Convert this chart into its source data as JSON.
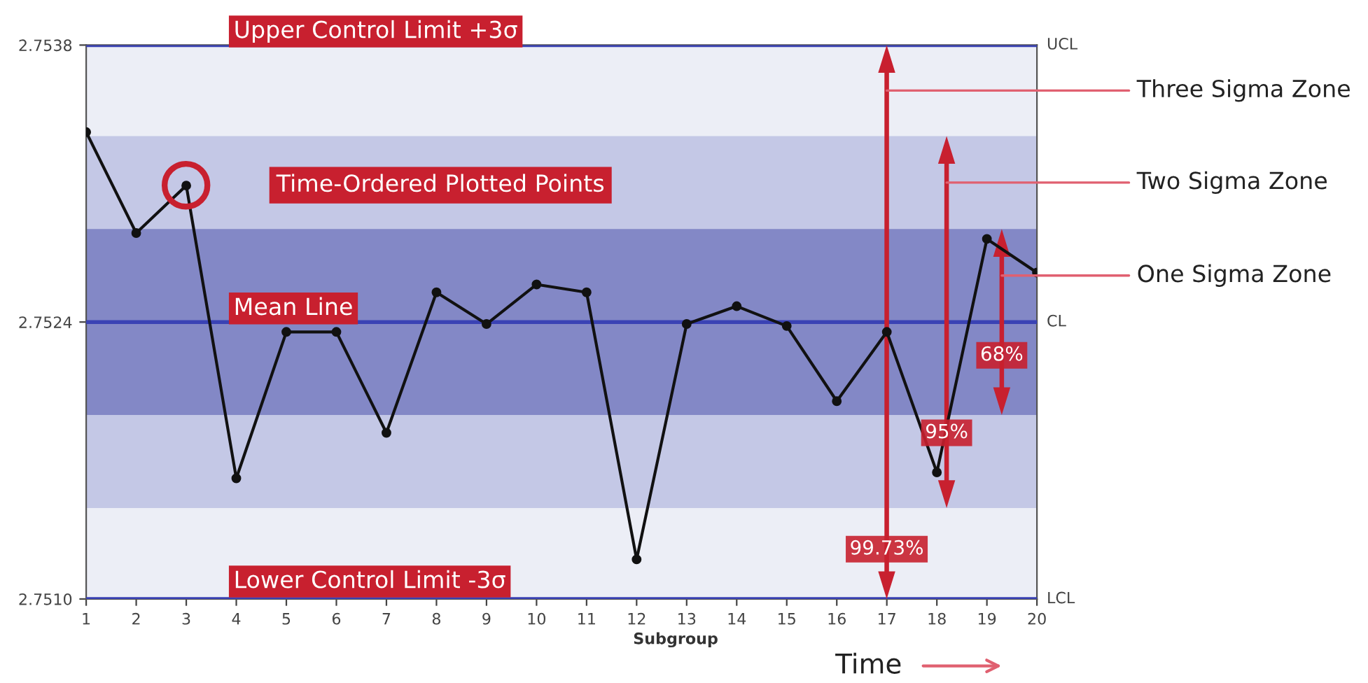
{
  "chart_data": {
    "type": "line",
    "x": [
      1,
      2,
      3,
      4,
      5,
      6,
      7,
      8,
      9,
      10,
      11,
      12,
      13,
      14,
      15,
      16,
      17,
      18,
      19,
      20
    ],
    "series": [
      {
        "color": "#111111",
        "values": [
          2.75336,
          2.75285,
          2.75309,
          2.75161,
          2.75235,
          2.75235,
          2.75184,
          2.75255,
          2.75239,
          2.75259,
          2.75255,
          2.7512,
          2.75239,
          2.75248,
          2.75238,
          2.752,
          2.75235,
          2.75164,
          2.75282,
          2.75265
        ]
      }
    ],
    "marker": "circle",
    "line_style": "solid",
    "xlabel": "Subgroup",
    "xlim": [
      1,
      20
    ],
    "xticks": [
      1,
      2,
      3,
      4,
      5,
      6,
      7,
      8,
      9,
      10,
      11,
      12,
      13,
      14,
      15,
      16,
      17,
      18,
      19,
      20
    ],
    "ylim": [
      2.751,
      2.7538
    ],
    "yticks": [
      {
        "value": 2.751,
        "label": "2.7510"
      },
      {
        "value": 2.7524,
        "label": "2.7524"
      },
      {
        "value": 2.7538,
        "label": "2.7538"
      }
    ],
    "grid": false,
    "bands": [
      {
        "axis": "y",
        "from": 2.751,
        "to": 2.7538,
        "label": "Three Sigma Zone",
        "color": "#eceef6"
      },
      {
        "axis": "y",
        "from": 2.75146,
        "to": 2.75334,
        "label": "Two Sigma Zone",
        "color": "#c4c8e6"
      },
      {
        "axis": "y",
        "from": 2.75193,
        "to": 2.75287,
        "label": "One Sigma Zone",
        "color": "#8388c6"
      }
    ],
    "ref_lines": [
      {
        "axis": "y",
        "value": 2.7538,
        "label": "Upper Control Limit +3σ",
        "color": "#3a42b4"
      },
      {
        "axis": "y",
        "value": 2.7524,
        "label": "Mean Line",
        "color": "#3a42b4"
      },
      {
        "axis": "y",
        "value": 2.751,
        "label": "Lower Control Limit -3σ",
        "color": "#3a42b4"
      }
    ],
    "annotations": [
      "99.73%",
      "95%",
      "68%",
      "Time-Ordered Plotted Points",
      "Time",
      "UCL",
      "CL",
      "LCL"
    ]
  }
}
